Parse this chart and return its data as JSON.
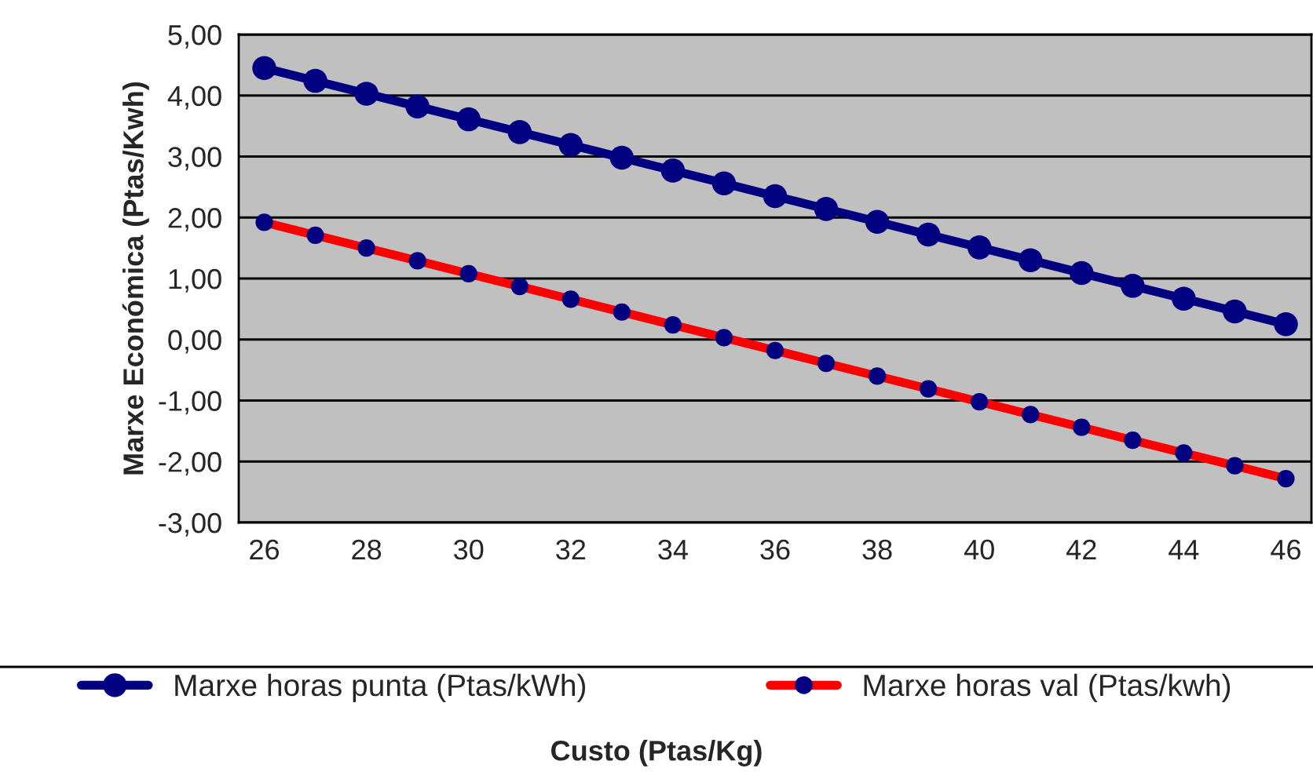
{
  "chart_data": {
    "type": "line",
    "annotations": [
      "Custo (Ptas/Kg)"
    ],
    "ylabel": "Marxe Económica (Ptas/Kwh)",
    "categories": [
      "26",
      null,
      "28",
      null,
      "30",
      null,
      "32",
      null,
      "34",
      null,
      "36",
      null,
      "38",
      null,
      "40",
      null,
      "42",
      null,
      "44",
      null,
      "46"
    ],
    "series": [
      {
        "name": "Marxe horas punta (Ptas/kWh)",
        "color": "#000080",
        "values": [
          4.45,
          4.24,
          4.03,
          3.82,
          3.61,
          3.4,
          3.19,
          2.98,
          2.77,
          2.56,
          2.35,
          2.14,
          1.93,
          1.72,
          1.51,
          1.3,
          1.09,
          0.88,
          0.67,
          0.46,
          0.25
        ]
      },
      {
        "name": "Marxe horas val (Ptas/kwh)",
        "color": "#ff0000",
        "colors": [
          "#000080",
          "#000080",
          "#000080",
          "#000080",
          "#000080",
          "#000080",
          "#000080",
          "#000080",
          "#000080",
          "#000080",
          "#000080",
          "#000080",
          "#000080",
          "#000080",
          "#000080",
          "#000080",
          "#000080",
          "#000080",
          "#000080",
          "#000080",
          "#000080"
        ],
        "values": [
          1.92,
          1.71,
          1.5,
          1.29,
          1.08,
          0.87,
          0.66,
          0.45,
          0.24,
          0.03,
          -0.18,
          -0.39,
          -0.6,
          -0.81,
          -1.02,
          -1.23,
          -1.44,
          -1.65,
          -1.86,
          -2.07,
          -2.28
        ]
      }
    ],
    "ylim": [
      -3,
      5
    ],
    "yticks": [
      {
        "value": -3,
        "label": "-3,00"
      },
      {
        "value": -2,
        "label": "-2,00"
      },
      {
        "value": -1,
        "label": "-1,00"
      },
      {
        "value": 0,
        "label": "0,00"
      },
      {
        "value": 1,
        "label": "1,00"
      },
      {
        "value": 2,
        "label": "2,00"
      },
      {
        "value": 3,
        "label": "3,00"
      },
      {
        "value": 4,
        "label": "4,00"
      },
      {
        "value": 5,
        "label": "5,00"
      }
    ],
    "grid": "y",
    "legend": "bottom",
    "marker": "circle",
    "line_style": "solid"
  }
}
